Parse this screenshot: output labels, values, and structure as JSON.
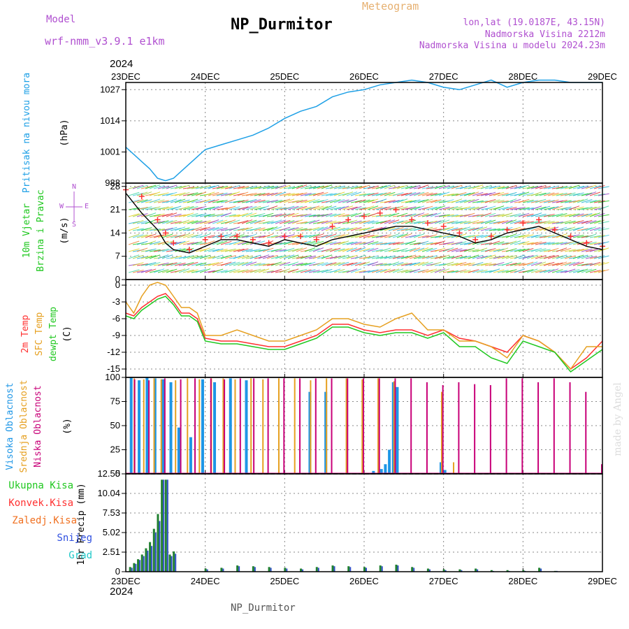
{
  "header": {
    "model_label": "Model",
    "model_name": "wrf-nmm_v3.9.1  e1km",
    "title": "NP_Durmitor",
    "product": "Meteogram",
    "coords": "lon,lat (19.0187E, 43.15N)",
    "elevation": "Nadmorska Visina 2212m",
    "model_elevation": "Nadmorska Visina u modelu 2024.23m",
    "year_top": "2024",
    "year_bottom": "2024",
    "footer": "NP_Durmitor",
    "watermark": "made by Angel"
  },
  "colors": {
    "pressure": "#1ea0e6",
    "wind_speed": "#000000",
    "gust": "#ff3030",
    "temp_2m": "#ff3030",
    "temp_sfc": "#e6a020",
    "dewpoint": "#20c820",
    "cloud_high": "#1e96e6",
    "cloud_mid": "#e6a020",
    "cloud_low": "#c80078",
    "precip_total": "#208030",
    "precip_frozen": "#3050c8"
  },
  "panels": {
    "pressure": {
      "ylabel_1": "Pritisak na nivou mora",
      "ylabel_2": "(hPa)"
    },
    "wind": {
      "ylabel_1": "10m Vjetar",
      "ylabel_2": "Brzina i Pravac",
      "ylabel_3": "(m/s)",
      "compass_w": "W",
      "compass_e": "E",
      "compass_n": "N",
      "compass_s": "S"
    },
    "temp": {
      "ylabel_1": "2m Temp",
      "ylabel_2": "SFC Temp",
      "ylabel_3": "dewpt Temp",
      "ylabel_4": "(C)"
    },
    "cloud": {
      "ylabel_1": "Visoka Oblacnost",
      "ylabel_2": "Srednja Oblacnost",
      "ylabel_3": "Niska Oblacnost",
      "ylabel_4": "(%)"
    },
    "precip": {
      "legend": [
        "Ukupna Kisa",
        "Konvek.Kisa",
        "Zaledj.Kisa",
        "Snijeg",
        "Grad"
      ],
      "ylabel": "1hr Precip (mm)"
    }
  },
  "chart_data": [
    {
      "type": "line",
      "id": "pressure",
      "x_categories": [
        "23DEC",
        "24DEC",
        "25DEC",
        "26DEC",
        "27DEC",
        "28DEC",
        "29DEC"
      ],
      "yticks": [
        "988",
        "1001",
        "1014",
        "1027"
      ],
      "ylim": [
        988,
        1030
      ],
      "series": [
        {
          "x": [
            0,
            0.1,
            0.2,
            0.3,
            0.4,
            0.5,
            0.6,
            0.7,
            0.8,
            0.9,
            1.0,
            1.2,
            1.4,
            1.6,
            1.8,
            2.0,
            2.2,
            2.4,
            2.6,
            2.8,
            3.0,
            3.2,
            3.4,
            3.6,
            3.8,
            4.0,
            4.2,
            4.4,
            4.6,
            4.8,
            5.0,
            5.2,
            5.4,
            5.6,
            5.8,
            6.0
          ],
          "values": [
            1003,
            1000,
            997,
            994,
            990,
            989,
            990,
            993,
            996,
            999,
            1002,
            1004,
            1006,
            1008,
            1011,
            1015,
            1018,
            1020,
            1024,
            1026,
            1027,
            1029,
            1030,
            1031,
            1030,
            1028,
            1027,
            1029,
            1031,
            1028,
            1030,
            1031,
            1031,
            1030,
            1030,
            1030
          ]
        }
      ]
    },
    {
      "type": "line",
      "id": "wind",
      "x_categories": [
        "23DEC",
        "24DEC",
        "25DEC",
        "26DEC",
        "27DEC",
        "28DEC",
        "29DEC"
      ],
      "yticks": [
        "0",
        "7",
        "14",
        "21",
        "28"
      ],
      "ylim": [
        0,
        29
      ],
      "series": [
        {
          "role": "speed",
          "x": [
            0,
            0.2,
            0.4,
            0.5,
            0.6,
            0.8,
            1.0,
            1.2,
            1.4,
            1.6,
            1.8,
            2.0,
            2.2,
            2.4,
            2.6,
            2.8,
            3.0,
            3.2,
            3.4,
            3.6,
            3.8,
            4.0,
            4.2,
            4.4,
            4.6,
            4.8,
            5.0,
            5.2,
            5.4,
            5.6,
            5.8,
            6.0
          ],
          "values": [
            26,
            20,
            15,
            11,
            9,
            8,
            10,
            12,
            12,
            11,
            10,
            12,
            11,
            10,
            12,
            13,
            14,
            15,
            16,
            16,
            15,
            14,
            13,
            11,
            12,
            14,
            15,
            16,
            14,
            12,
            10,
            9
          ]
        },
        {
          "role": "gust",
          "x": [
            0,
            0.2,
            0.4,
            0.5,
            0.6,
            0.8,
            1.0,
            1.2,
            1.4,
            1.6,
            1.8,
            2.0,
            2.2,
            2.4,
            2.6,
            2.8,
            3.0,
            3.2,
            3.4,
            3.6,
            3.8,
            4.0,
            4.2,
            4.4,
            4.6,
            4.8,
            5.0,
            5.2,
            5.4,
            5.6,
            5.8,
            6.0
          ],
          "values": [
            27,
            25,
            18,
            14,
            11,
            9,
            12,
            13,
            13,
            12,
            11,
            13,
            13,
            12,
            16,
            18,
            19,
            20,
            21,
            18,
            17,
            16,
            14,
            12,
            13,
            15,
            17,
            18,
            15,
            13,
            11,
            10
          ]
        }
      ]
    },
    {
      "type": "line",
      "id": "temperature",
      "x_categories": [
        "23DEC",
        "24DEC",
        "25DEC",
        "26DEC",
        "27DEC",
        "28DEC",
        "29DEC"
      ],
      "yticks": [
        "0",
        "-3",
        "-6",
        "-9",
        "-12",
        "-15"
      ],
      "ylim": [
        -16.5,
        1
      ],
      "series": [
        {
          "role": "2m",
          "x": [
            0,
            0.1,
            0.2,
            0.3,
            0.4,
            0.5,
            0.6,
            0.7,
            0.8,
            0.9,
            1.0,
            1.2,
            1.4,
            1.6,
            1.8,
            2.0,
            2.2,
            2.4,
            2.6,
            2.8,
            3.0,
            3.2,
            3.4,
            3.6,
            3.8,
            4.0,
            4.2,
            4.4,
            4.6,
            4.8,
            5.0,
            5.2,
            5.4,
            5.6,
            5.8,
            6.0
          ],
          "values": [
            -5,
            -5.5,
            -4,
            -3,
            -2,
            -1.5,
            -3,
            -5,
            -5,
            -6,
            -9.5,
            -10,
            -10,
            -10.5,
            -11,
            -11,
            -10,
            -9,
            -7,
            -7,
            -8,
            -8.5,
            -8,
            -8,
            -9,
            -8,
            -9.5,
            -10,
            -11,
            -12,
            -9,
            -10,
            -12,
            -15,
            -13,
            -10
          ]
        },
        {
          "role": "sfc",
          "x": [
            0,
            0.1,
            0.2,
            0.3,
            0.4,
            0.5,
            0.6,
            0.7,
            0.8,
            0.9,
            1.0,
            1.2,
            1.4,
            1.6,
            1.8,
            2.0,
            2.2,
            2.4,
            2.6,
            2.8,
            3.0,
            3.2,
            3.4,
            3.6,
            3.8,
            4.0,
            4.2,
            4.4,
            4.6,
            4.8,
            5.0,
            5.2,
            5.4,
            5.6,
            5.8,
            6.0
          ],
          "values": [
            -3,
            -5,
            -2,
            0,
            0.5,
            0,
            -2,
            -4,
            -4,
            -5,
            -9,
            -9,
            -8,
            -9,
            -10,
            -10,
            -9,
            -8,
            -6,
            -6,
            -7,
            -7.5,
            -6,
            -5,
            -8,
            -8,
            -10,
            -10,
            -11,
            -13,
            -9,
            -10,
            -12,
            -15,
            -11,
            -11
          ]
        },
        {
          "role": "dewpoint",
          "x": [
            0,
            0.1,
            0.2,
            0.3,
            0.4,
            0.5,
            0.6,
            0.7,
            0.8,
            0.9,
            1.0,
            1.2,
            1.4,
            1.6,
            1.8,
            2.0,
            2.2,
            2.4,
            2.6,
            2.8,
            3.0,
            3.2,
            3.4,
            3.6,
            3.8,
            4.0,
            4.2,
            4.4,
            4.6,
            4.8,
            5.0,
            5.2,
            5.4,
            5.6,
            5.8,
            6.0
          ],
          "values": [
            -5.5,
            -6,
            -4.5,
            -3.5,
            -2.5,
            -2,
            -3.5,
            -5.5,
            -5.5,
            -6.5,
            -10,
            -10.5,
            -10.5,
            -11,
            -11.5,
            -11.5,
            -10.5,
            -9.5,
            -7.5,
            -7.5,
            -8.5,
            -9,
            -8.5,
            -8.5,
            -9.5,
            -8.5,
            -11,
            -11,
            -13,
            -14,
            -10,
            -11,
            -12,
            -15.5,
            -13.5,
            -11.5
          ]
        }
      ]
    },
    {
      "type": "bar",
      "id": "cloud_cover",
      "x_categories": [
        "23DEC",
        "24DEC",
        "25DEC",
        "26DEC",
        "27DEC",
        "28DEC",
        "29DEC"
      ],
      "yticks": [
        "0",
        "25",
        "50",
        "75",
        "100"
      ],
      "ylim": [
        0,
        100
      ],
      "series": [
        {
          "role": "high",
          "x": [
            0.05,
            0.15,
            0.25,
            0.35,
            0.45,
            0.55,
            0.65,
            0.8,
            0.95,
            1.1,
            1.3,
            1.5,
            2.3,
            2.5,
            3.1,
            3.2,
            3.25,
            3.3,
            3.35,
            3.4,
            3.95,
            4.0
          ],
          "values": [
            100,
            97,
            100,
            99,
            98,
            95,
            48,
            38,
            98,
            95,
            99,
            97,
            85,
            85,
            3,
            5,
            10,
            25,
            95,
            90,
            12,
            4
          ]
        },
        {
          "role": "mid",
          "x": [
            0.08,
            0.2,
            0.33,
            0.42,
            0.6,
            0.75,
            0.9,
            1.05,
            1.2,
            1.35,
            1.55,
            1.7,
            1.9,
            2.1,
            2.3,
            2.5,
            2.75,
            2.95,
            3.15,
            3.35,
            3.95,
            4.1
          ],
          "values": [
            99,
            98,
            99,
            98,
            97,
            99,
            98,
            99,
            99,
            98,
            99,
            98,
            99,
            99,
            97,
            99,
            99,
            98,
            99,
            96,
            85,
            12
          ]
        },
        {
          "role": "low",
          "x": [
            0.12,
            0.3,
            0.5,
            0.7,
            0.88,
            1.08,
            1.25,
            1.45,
            1.62,
            1.8,
            2.0,
            2.2,
            2.4,
            2.6,
            2.8,
            3.0,
            3.2,
            3.4,
            3.6,
            3.8,
            4.0,
            4.2,
            4.4,
            4.6,
            4.8,
            5.0,
            5.2,
            5.4,
            5.6,
            5.8,
            6.0
          ],
          "values": [
            98,
            97,
            99,
            98,
            99,
            99,
            98,
            99,
            99,
            99,
            99,
            99,
            99,
            99,
            99,
            99,
            99,
            99,
            99,
            95,
            92,
            95,
            93,
            92,
            99,
            99,
            95,
            99,
            95,
            85,
            10
          ]
        }
      ]
    },
    {
      "type": "bar",
      "id": "precip",
      "x_categories": [
        "23DEC",
        "24DEC",
        "25DEC",
        "26DEC",
        "27DEC",
        "28DEC",
        "29DEC"
      ],
      "yticks": [
        "0",
        "2.51",
        "5.02",
        "7.53",
        "10.04",
        "12.55"
      ],
      "ylim": [
        0,
        12.55
      ],
      "series": [
        {
          "role": "total",
          "x": [
            0.05,
            0.1,
            0.15,
            0.2,
            0.25,
            0.3,
            0.35,
            0.4,
            0.45,
            0.5,
            0.55,
            0.6,
            1.0,
            1.2,
            1.4,
            1.6,
            1.8,
            2.0,
            2.2,
            2.4,
            2.6,
            2.8,
            3.0,
            3.2,
            3.4,
            3.6,
            3.8,
            4.0,
            4.2,
            4.4,
            4.6,
            4.8,
            5.0,
            5.2,
            5.4
          ],
          "values": [
            0.6,
            1.1,
            1.6,
            2.2,
            3.0,
            3.8,
            5.5,
            7.4,
            11.8,
            11.8,
            2.2,
            2.6,
            0.4,
            0.5,
            0.8,
            0.7,
            0.6,
            0.5,
            0.4,
            0.6,
            0.8,
            0.7,
            0.6,
            0.8,
            0.9,
            0.6,
            0.4,
            0.3,
            0.3,
            0.4,
            0.2,
            0.2,
            0.2,
            0.5,
            0.1
          ]
        },
        {
          "role": "snow",
          "x": [
            0.05,
            0.1,
            0.15,
            0.2,
            0.25,
            0.3,
            0.35,
            0.4,
            0.45,
            0.5,
            0.55,
            0.6,
            1.0,
            1.2,
            1.4,
            1.6,
            1.8,
            2.0,
            2.2,
            2.4,
            2.6,
            2.8,
            3.0,
            3.2,
            3.4,
            3.6,
            3.8,
            4.0,
            4.2,
            4.4,
            4.6,
            4.8,
            5.0,
            5.2,
            5.4
          ],
          "values": [
            0.5,
            1.0,
            1.5,
            2.0,
            2.7,
            3.3,
            5.0,
            6.5,
            11.8,
            11.8,
            2.0,
            2.3,
            0.3,
            0.4,
            0.7,
            0.6,
            0.5,
            0.4,
            0.3,
            0.5,
            0.7,
            0.6,
            0.5,
            0.7,
            0.8,
            0.5,
            0.3,
            0.2,
            0.2,
            0.3,
            0.1,
            0.1,
            0.1,
            0.4,
            0.1
          ]
        }
      ]
    }
  ]
}
